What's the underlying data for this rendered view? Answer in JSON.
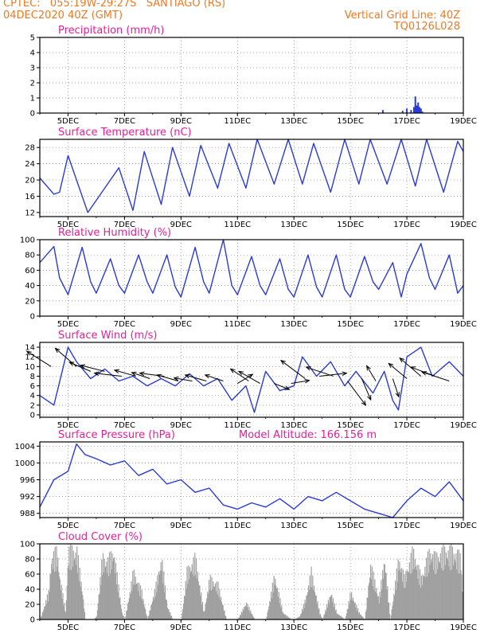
{
  "header": {
    "line1": "CPTEC:   055:19W-29:27S   SANTIAGO (RS)",
    "line2": "04DEC2020 40Z (GMT)",
    "grid_note": "Vertical Grid Line: 40Z",
    "model_code": "TQ0126L028"
  },
  "colors": {
    "header": "#f07820",
    "title": "#e0209a",
    "line": "#2a3ad8",
    "bar": "#a0a0a0",
    "arrow": "#000000"
  },
  "x_axis": {
    "ticks": [
      "5DEC",
      "7DEC",
      "9DEC",
      "11DEC",
      "13DEC",
      "15DEC",
      "17DEC",
      "19DEC"
    ],
    "range_days": [
      4.0,
      19.0
    ],
    "tick_days": [
      5,
      7,
      9,
      11,
      13,
      15,
      17,
      19
    ]
  },
  "chart_data": [
    {
      "id": "precip",
      "type": "bar",
      "title": "Precipitation (mm/h)",
      "ylim": [
        0,
        5
      ],
      "yticks": [
        0,
        1,
        2,
        3,
        4,
        5
      ],
      "grid": true,
      "x": [
        16.15,
        16.85,
        17.0,
        17.15,
        17.25,
        17.3,
        17.35,
        17.4,
        17.45,
        17.5,
        17.55
      ],
      "values": [
        0.2,
        0.15,
        0.3,
        0.2,
        0.4,
        1.1,
        0.5,
        0.7,
        0.4,
        0.3,
        0.1
      ]
    },
    {
      "id": "temp",
      "type": "line",
      "title": "Surface Temperature (nC)",
      "ylim": [
        11,
        30
      ],
      "yticks": [
        12,
        16,
        20,
        24,
        28
      ],
      "grid": true,
      "x": [
        4.0,
        4.5,
        4.7,
        5.0,
        5.7,
        6.0,
        6.8,
        7.3,
        7.7,
        8.3,
        8.7,
        9.3,
        9.7,
        10.3,
        10.7,
        11.3,
        11.7,
        12.3,
        12.8,
        13.3,
        13.7,
        14.3,
        14.8,
        15.3,
        15.7,
        16.3,
        16.8,
        17.3,
        17.7,
        18.3,
        18.8,
        19.0
      ],
      "values": [
        20.5,
        16.5,
        17,
        26,
        12,
        15,
        23,
        12.5,
        27,
        14,
        28,
        16,
        28.5,
        18,
        29,
        18,
        30,
        19,
        30,
        19,
        29,
        17,
        30,
        19,
        30.5,
        19,
        30.5,
        18.5,
        30.5,
        17,
        29.5,
        27
      ]
    },
    {
      "id": "rh",
      "type": "line",
      "title": "Relative Humidity (%)",
      "ylim": [
        0,
        100
      ],
      "yticks": [
        0,
        20,
        40,
        60,
        80,
        100
      ],
      "grid": true,
      "x": [
        4.0,
        4.5,
        4.7,
        5.0,
        5.5,
        5.8,
        6.0,
        6.5,
        6.8,
        7.0,
        7.5,
        7.8,
        8.0,
        8.5,
        8.8,
        9.0,
        9.5,
        9.8,
        10.0,
        10.5,
        10.8,
        11.0,
        11.5,
        11.8,
        12.0,
        12.5,
        12.8,
        13.0,
        13.5,
        13.8,
        14.0,
        14.5,
        14.8,
        15.0,
        15.5,
        15.8,
        16.0,
        16.5,
        16.8,
        17.0,
        17.5,
        17.8,
        18.0,
        18.5,
        18.8,
        19.0
      ],
      "values": [
        70,
        91,
        50,
        28,
        90,
        45,
        30,
        75,
        40,
        30,
        80,
        45,
        30,
        80,
        38,
        25,
        90,
        45,
        30,
        100,
        40,
        28,
        78,
        40,
        28,
        75,
        35,
        25,
        80,
        38,
        25,
        80,
        35,
        25,
        78,
        45,
        35,
        70,
        25,
        55,
        95,
        50,
        35,
        80,
        30,
        40
      ]
    },
    {
      "id": "wind",
      "type": "line",
      "title": "Surface Wind (m/s)",
      "ylim": [
        -0.5,
        15
      ],
      "yticks": [
        0,
        2,
        4,
        6,
        8,
        10,
        12,
        14
      ],
      "grid": true,
      "x": [
        4.0,
        4.5,
        5.0,
        5.3,
        5.8,
        6.3,
        6.8,
        7.3,
        7.8,
        8.3,
        8.8,
        9.3,
        9.8,
        10.3,
        10.8,
        11.3,
        11.6,
        12.0,
        12.5,
        13.0,
        13.3,
        13.8,
        14.3,
        14.8,
        15.2,
        15.8,
        16.2,
        16.5,
        16.7,
        17.0,
        17.5,
        17.9,
        18.5,
        19.0
      ],
      "values": [
        4,
        2,
        14,
        11,
        7.5,
        9.5,
        7,
        8,
        6,
        7.5,
        6,
        8.5,
        6,
        7.5,
        3,
        6,
        0.5,
        9,
        5,
        6,
        12,
        8,
        11,
        6,
        9,
        4.5,
        9,
        3,
        1,
        12,
        14,
        8,
        11,
        8
      ]
    },
    {
      "id": "pressure",
      "type": "line",
      "title": "Surface Pressure (hPa)",
      "note": "Model Altitude: 166.156  m",
      "ylim": [
        987,
        1005
      ],
      "yticks": [
        988,
        992,
        996,
        1000,
        1004
      ],
      "grid": true,
      "x": [
        4.0,
        4.5,
        5.0,
        5.3,
        5.6,
        6.0,
        6.5,
        7.0,
        7.5,
        8.0,
        8.5,
        9.0,
        9.5,
        10.0,
        10.5,
        11.0,
        11.5,
        12.0,
        12.5,
        13.0,
        13.5,
        14.0,
        14.5,
        15.0,
        15.5,
        16.0,
        16.5,
        17.0,
        17.5,
        18.0,
        18.5,
        19.0
      ],
      "values": [
        989.5,
        996,
        998,
        1004.5,
        1002,
        1001,
        999.5,
        1000.5,
        997,
        998.5,
        995,
        996,
        993,
        994,
        990,
        989,
        990.5,
        989.5,
        991.5,
        989,
        992,
        991,
        993,
        991,
        989,
        988,
        986.5,
        991,
        994,
        992,
        995.5,
        991
      ]
    },
    {
      "id": "cloud",
      "type": "area",
      "title": "Cloud Cover (%)",
      "ylim": [
        0,
        100
      ],
      "yticks": [
        0,
        20,
        40,
        60,
        80,
        100
      ],
      "grid": true,
      "x": [
        4.0,
        4.3,
        4.4,
        4.6,
        4.7,
        4.9,
        5.0,
        5.3,
        5.5,
        5.6,
        5.9,
        6.0,
        6.2,
        6.4,
        6.6,
        6.9,
        7.0,
        7.3,
        7.6,
        7.8,
        8.1,
        8.3,
        8.5,
        8.7,
        9.0,
        9.2,
        9.5,
        9.8,
        10.0,
        10.3,
        10.6,
        10.9,
        11.0,
        11.3,
        11.6,
        11.8,
        12.0,
        12.3,
        12.6,
        12.9,
        13.0,
        13.2,
        13.4,
        13.6,
        13.9,
        14.0,
        14.3,
        14.5,
        14.8,
        15.0,
        15.3,
        15.5,
        15.7,
        16.0,
        16.2,
        16.4,
        16.7,
        16.9,
        17.2,
        17.5,
        17.8,
        18.0,
        18.3,
        18.6,
        18.9,
        19.0
      ],
      "values": [
        0,
        40,
        90,
        100,
        60,
        10,
        100,
        100,
        40,
        0,
        0,
        5,
        90,
        85,
        100,
        10,
        0,
        70,
        40,
        0,
        50,
        90,
        20,
        0,
        0,
        70,
        90,
        10,
        60,
        50,
        0,
        0,
        0,
        25,
        0,
        0,
        0,
        65,
        10,
        0,
        0,
        5,
        30,
        70,
        10,
        0,
        40,
        10,
        0,
        40,
        10,
        0,
        80,
        30,
        90,
        0,
        90,
        60,
        100,
        60,
        100,
        90,
        100,
        100,
        90,
        0
      ]
    }
  ],
  "wind_arrows": {
    "x": [
      4.4,
      5.3,
      5.8,
      6.3,
      6.9,
      7.4,
      7.9,
      8.4,
      8.9,
      9.4,
      9.9,
      10.5,
      11.0,
      11.4,
      11.8,
      12.3,
      12.9,
      13.4,
      13.9,
      14.4,
      14.9,
      15.4,
      15.9,
      16.5,
      17.0,
      17.5,
      18.0,
      18.5
    ],
    "y": [
      10,
      10,
      9,
      9,
      8,
      8,
      7.5,
      8,
      7,
      7,
      7,
      7,
      6.5,
      7,
      6.5,
      6.5,
      6.5,
      7.5,
      8,
      8,
      7,
      7.5,
      7,
      7.5,
      7.5,
      8,
      8,
      7
    ],
    "u": [
      -0.8,
      -0.7,
      -0.7,
      -0.8,
      -0.9,
      -0.7,
      -0.6,
      -0.8,
      -0.7,
      -0.6,
      -0.7,
      -0.6,
      0.5,
      -0.6,
      -0.7,
      0.5,
      0.6,
      -0.8,
      0.9,
      -0.9,
      0.6,
      0.3,
      -0.3,
      0.2,
      -0.6,
      -0.7,
      -0.8,
      -0.9
    ],
    "v": [
      0.5,
      0.6,
      0.3,
      0.2,
      0.1,
      0.2,
      0.2,
      0.1,
      0.2,
      0.1,
      0.2,
      0.2,
      0.3,
      0.4,
      0.4,
      -0.2,
      0.1,
      0.6,
      0.1,
      0.3,
      -0.8,
      -0.7,
      0.5,
      -0.6,
      0.5,
      0.6,
      0.3,
      0.3
    ]
  }
}
